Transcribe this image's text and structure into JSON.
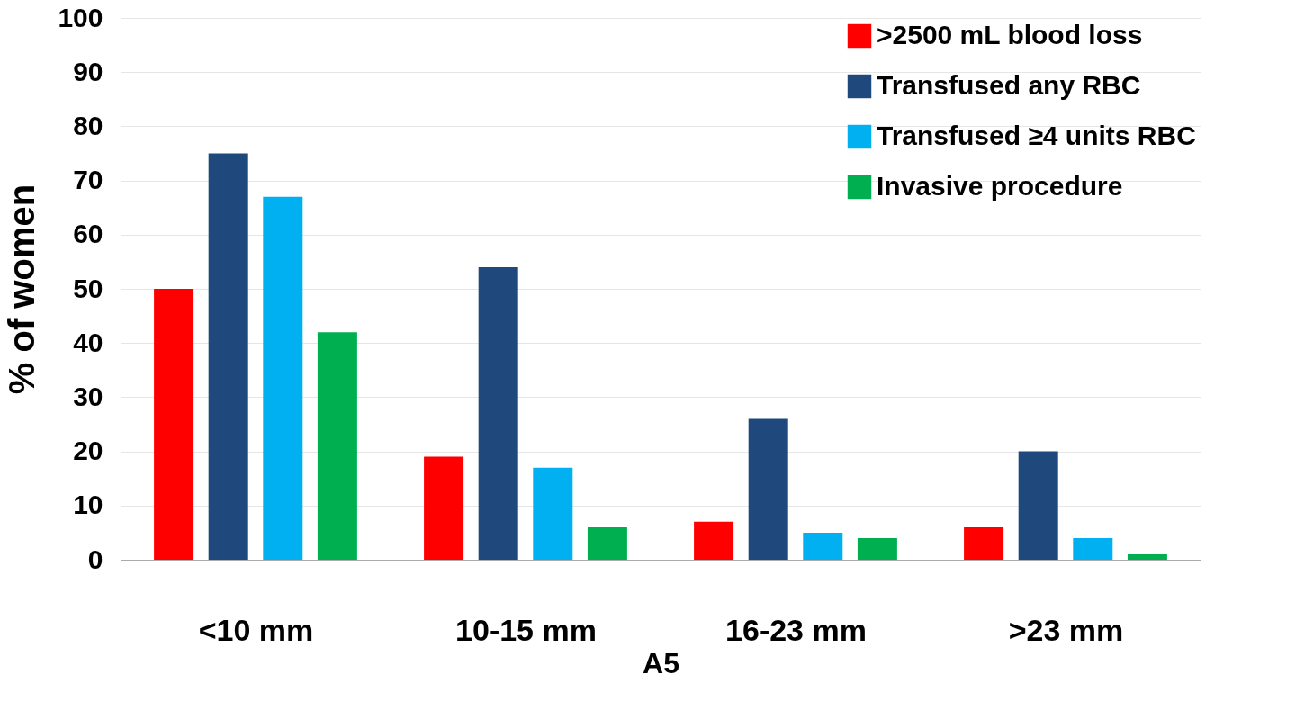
{
  "chart_data": {
    "type": "bar",
    "xlabel": "A5",
    "ylabel": "% of women",
    "categories": [
      "<10 mm",
      "10-15 mm",
      "16-23 mm",
      ">23 mm"
    ],
    "series": [
      {
        "name": ">2500 mL blood loss",
        "color": "#ff0000",
        "values": [
          50,
          19,
          7,
          6
        ]
      },
      {
        "name": "Transfused any RBC",
        "color": "#1f497d",
        "values": [
          75,
          54,
          26,
          20
        ]
      },
      {
        "name": "Transfused ≥4 units RBC",
        "color": "#00b0f0",
        "values": [
          67,
          17,
          5,
          4
        ]
      },
      {
        "name": "Invasive procedure",
        "color": "#00b050",
        "values": [
          42,
          6,
          4,
          1
        ]
      }
    ],
    "ylim": [
      0,
      100
    ],
    "yticks": [
      0,
      10,
      20,
      30,
      40,
      50,
      60,
      70,
      80,
      90,
      100
    ],
    "grid": "y",
    "legend": "top right"
  }
}
